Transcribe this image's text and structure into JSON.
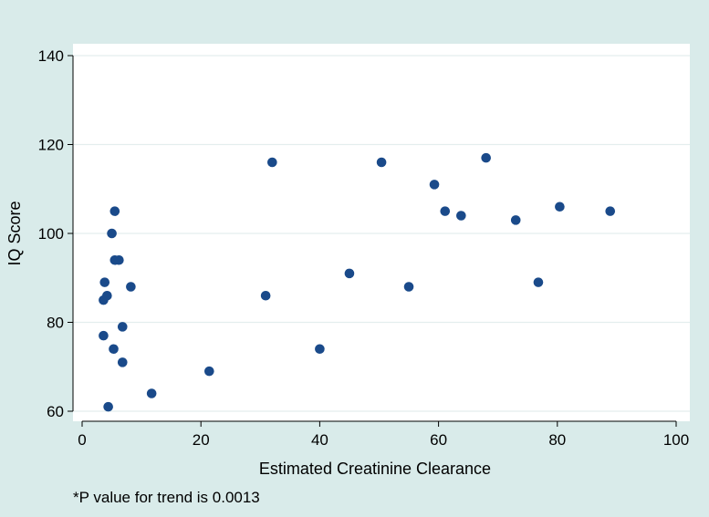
{
  "chart_data": {
    "type": "scatter",
    "title": "",
    "xlabel": "Estimated Creatinine Clearance",
    "ylabel": "IQ Score",
    "xlim": [
      0,
      100
    ],
    "ylim": [
      58,
      142
    ],
    "x_ticks": [
      0,
      20,
      40,
      60,
      80,
      100
    ],
    "y_ticks": [
      60,
      80,
      100,
      120,
      140
    ],
    "grid": true,
    "legend": "none",
    "marker_color": "#1a4a8a",
    "background_color": "#d9ebea",
    "plot_color": "#ffffff",
    "points": [
      {
        "x": 3.8,
        "y": 89
      },
      {
        "x": 3.6,
        "y": 85
      },
      {
        "x": 4.2,
        "y": 86
      },
      {
        "x": 3.6,
        "y": 77
      },
      {
        "x": 4.4,
        "y": 61
      },
      {
        "x": 5.0,
        "y": 100
      },
      {
        "x": 5.5,
        "y": 94
      },
      {
        "x": 5.5,
        "y": 105
      },
      {
        "x": 5.3,
        "y": 74
      },
      {
        "x": 6.2,
        "y": 94
      },
      {
        "x": 6.8,
        "y": 79
      },
      {
        "x": 6.8,
        "y": 71
      },
      {
        "x": 8.2,
        "y": 88
      },
      {
        "x": 11.7,
        "y": 64
      },
      {
        "x": 21.4,
        "y": 69
      },
      {
        "x": 30.9,
        "y": 86
      },
      {
        "x": 32.0,
        "y": 116
      },
      {
        "x": 40.0,
        "y": 74
      },
      {
        "x": 45.0,
        "y": 91
      },
      {
        "x": 50.4,
        "y": 116
      },
      {
        "x": 55.0,
        "y": 88
      },
      {
        "x": 59.3,
        "y": 111
      },
      {
        "x": 61.1,
        "y": 105
      },
      {
        "x": 63.8,
        "y": 104
      },
      {
        "x": 68.0,
        "y": 117
      },
      {
        "x": 73.0,
        "y": 103
      },
      {
        "x": 76.8,
        "y": 89
      },
      {
        "x": 80.4,
        "y": 106
      },
      {
        "x": 88.9,
        "y": 105
      }
    ],
    "annotation": "*P value for trend is 0.0013"
  }
}
